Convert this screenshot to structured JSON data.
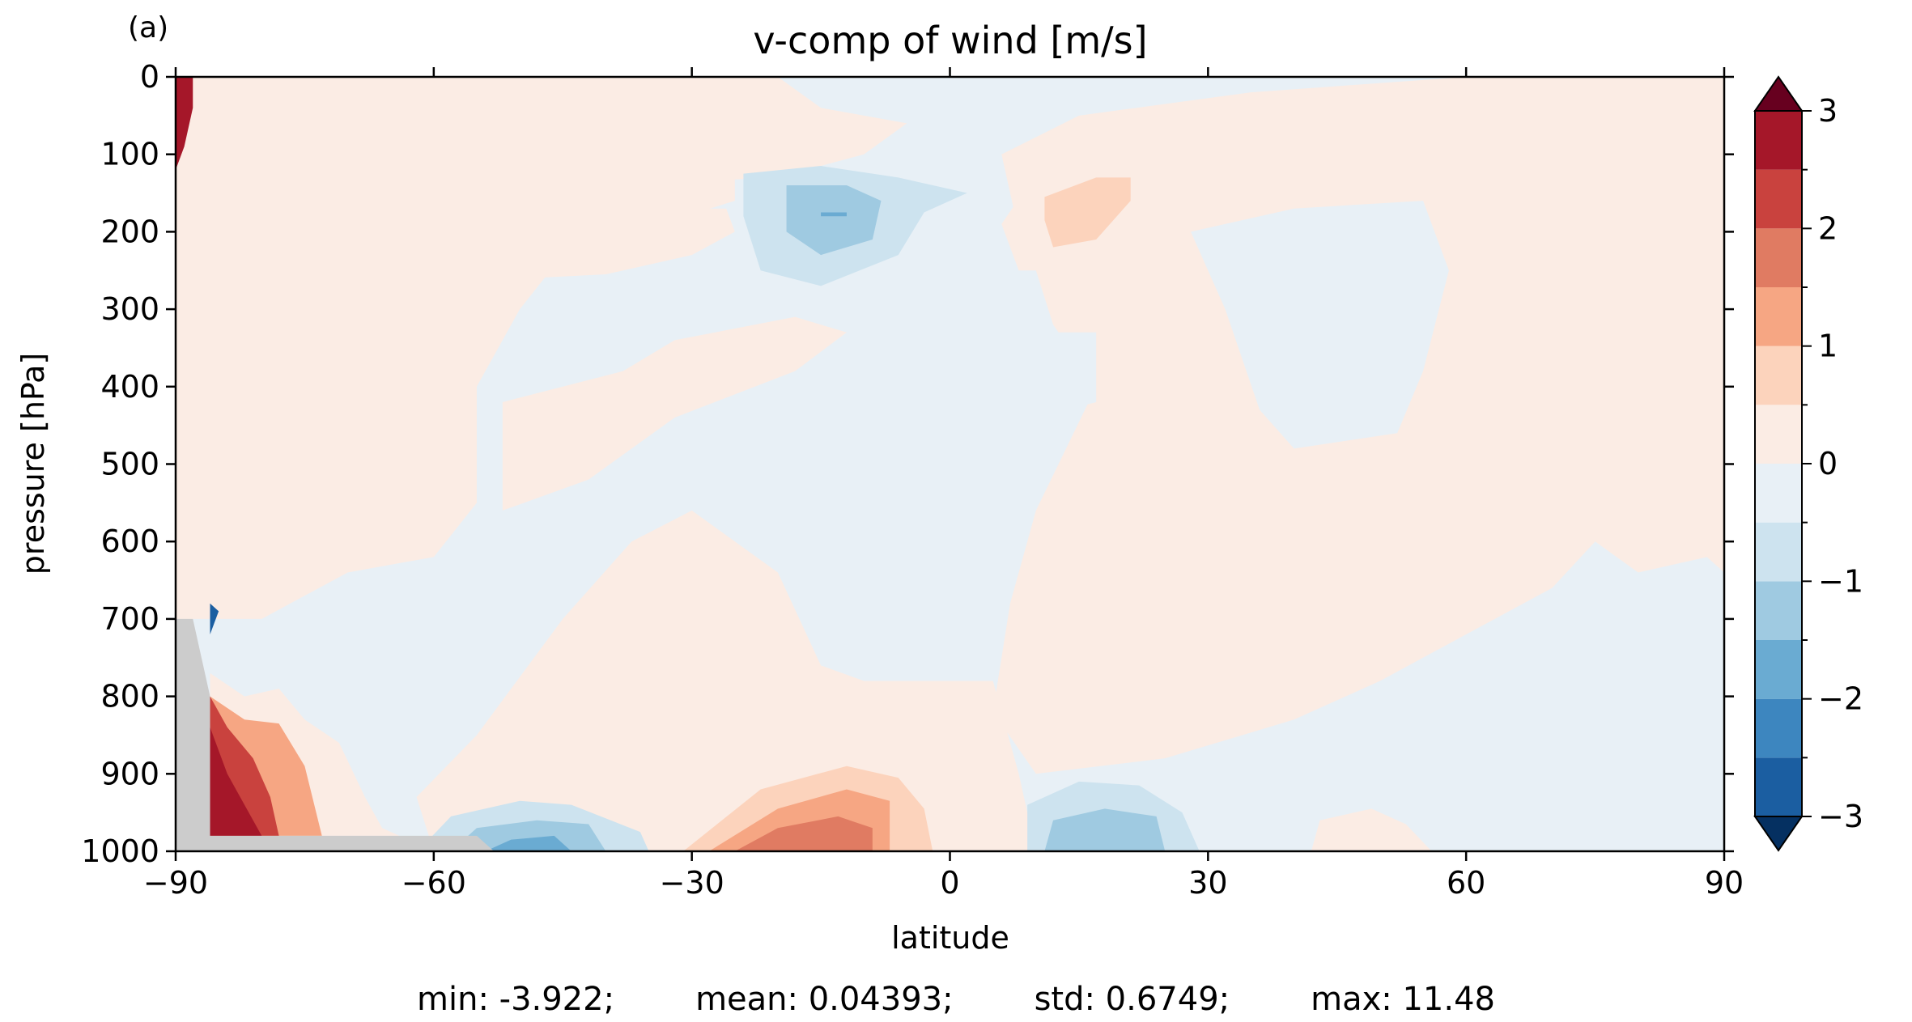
{
  "panel_label": "(a)",
  "chart_data": {
    "type": "heatmap",
    "title": "v-comp of wind [m/s]",
    "xlabel": "latitude",
    "ylabel": "pressure [hPa]",
    "xlim": [
      -90,
      90
    ],
    "ylim": [
      1000,
      0
    ],
    "x_ticks": [
      -90,
      -60,
      -30,
      0,
      30,
      60,
      90
    ],
    "x_tick_labels": [
      "−90",
      "−60",
      "−30",
      "0",
      "30",
      "60",
      "90"
    ],
    "y_ticks": [
      0,
      100,
      200,
      300,
      400,
      500,
      600,
      700,
      800,
      900,
      1000
    ],
    "y_tick_labels": [
      "0",
      "100",
      "200",
      "300",
      "400",
      "500",
      "600",
      "700",
      "800",
      "900",
      "1000"
    ],
    "colorbar": {
      "levels": [
        -3,
        -2.5,
        -2,
        -1.5,
        -1,
        -0.5,
        0,
        0.5,
        1,
        1.5,
        2,
        2.5,
        3
      ],
      "tick_values": [
        -3,
        -2,
        -1,
        0,
        1,
        2,
        3
      ],
      "tick_labels": [
        "−3",
        "−2",
        "−1",
        "0",
        "1",
        "2",
        "3"
      ],
      "extend": "both",
      "colors": [
        "#053061",
        "#1b5ea1",
        "#3d86bf",
        "#6aabd2",
        "#9fcae1",
        "#cde3ef",
        "#e8f0f6",
        "#fbece4",
        "#fcd3bc",
        "#f6a683",
        "#e07b62",
        "#c9423e",
        "#a51729",
        "#67001f"
      ],
      "missing_color": "#cccccc"
    },
    "features": [
      {
        "kind": "positive",
        "level": 1,
        "points": [
          [
            -43,
            200
          ],
          [
            -38,
            180
          ],
          [
            -32,
            170
          ],
          [
            -26,
            170
          ],
          [
            -25,
            200
          ],
          [
            -30,
            230
          ],
          [
            -40,
            255
          ],
          [
            -49,
            260
          ],
          [
            -50,
            230
          ]
        ]
      },
      {
        "kind": "negative",
        "level": 1,
        "points": [
          [
            -24,
            125
          ],
          [
            -15,
            115
          ],
          [
            -6,
            130
          ],
          [
            2,
            150
          ],
          [
            -3,
            175
          ],
          [
            -6,
            230
          ],
          [
            -15,
            270
          ],
          [
            -22,
            250
          ],
          [
            -24,
            180
          ]
        ]
      },
      {
        "kind": "negative",
        "level": 2,
        "points": [
          [
            -19,
            140
          ],
          [
            -12,
            140
          ],
          [
            -8,
            160
          ],
          [
            -9,
            210
          ],
          [
            -15,
            230
          ],
          [
            -19,
            200
          ]
        ]
      },
      {
        "kind": "negative",
        "level": 3,
        "points": [
          [
            -15,
            175
          ],
          [
            -12,
            175
          ],
          [
            -12,
            180
          ],
          [
            -15,
            180
          ]
        ]
      },
      {
        "kind": "positive",
        "level": 1,
        "points": [
          [
            10,
            125
          ],
          [
            18,
            100
          ],
          [
            25,
            105
          ],
          [
            27,
            150
          ],
          [
            23,
            190
          ],
          [
            15,
            250
          ],
          [
            8,
            250
          ],
          [
            6,
            190
          ]
        ]
      },
      {
        "kind": "positive",
        "level": 2,
        "points": [
          [
            11,
            155
          ],
          [
            17,
            130
          ],
          [
            21,
            130
          ],
          [
            21,
            160
          ],
          [
            17,
            210
          ],
          [
            12,
            220
          ],
          [
            11,
            185
          ]
        ]
      },
      {
        "kind": "positive",
        "level": 1,
        "points": [
          [
            -35,
            1000
          ],
          [
            -33,
            930
          ],
          [
            -25,
            870
          ],
          [
            -12,
            840
          ],
          [
            -2,
            860
          ],
          [
            3,
            900
          ],
          [
            5,
            1000
          ]
        ]
      },
      {
        "kind": "positive",
        "level": 2,
        "points": [
          [
            -31,
            1000
          ],
          [
            -22,
            920
          ],
          [
            -12,
            890
          ],
          [
            -6,
            905
          ],
          [
            -3,
            945
          ],
          [
            -2,
            1000
          ]
        ]
      },
      {
        "kind": "positive",
        "level": 3,
        "points": [
          [
            -28,
            1000
          ],
          [
            -20,
            945
          ],
          [
            -12,
            920
          ],
          [
            -7,
            935
          ],
          [
            -7,
            1000
          ]
        ]
      },
      {
        "kind": "positive",
        "level": 4,
        "points": [
          [
            -25,
            1000
          ],
          [
            -20,
            970
          ],
          [
            -13,
            955
          ],
          [
            -9,
            970
          ],
          [
            -9,
            1000
          ]
        ]
      },
      {
        "kind": "negative",
        "level": 1,
        "points": [
          [
            -61,
            990
          ],
          [
            -58,
            955
          ],
          [
            -50,
            935
          ],
          [
            -44,
            940
          ],
          [
            -36,
            975
          ],
          [
            -35,
            1000
          ],
          [
            -61,
            1000
          ]
        ]
      },
      {
        "kind": "negative",
        "level": 2,
        "points": [
          [
            -58,
            1000
          ],
          [
            -55,
            970
          ],
          [
            -48,
            960
          ],
          [
            -42,
            965
          ],
          [
            -40,
            1000
          ]
        ]
      },
      {
        "kind": "negative",
        "level": 3,
        "points": [
          [
            -54,
            1000
          ],
          [
            -51,
            985
          ],
          [
            -46,
            980
          ],
          [
            -44,
            1000
          ]
        ]
      },
      {
        "kind": "negative",
        "level": 1,
        "points": [
          [
            9,
            1000
          ],
          [
            9,
            940
          ],
          [
            15,
            910
          ],
          [
            22,
            915
          ],
          [
            27,
            950
          ],
          [
            29,
            1000
          ]
        ]
      },
      {
        "kind": "negative",
        "level": 2,
        "points": [
          [
            11,
            1000
          ],
          [
            12,
            960
          ],
          [
            18,
            945
          ],
          [
            24,
            955
          ],
          [
            25,
            1000
          ]
        ]
      },
      {
        "kind": "positive",
        "level": 1,
        "points": [
          [
            42,
            1000
          ],
          [
            43,
            960
          ],
          [
            49,
            945
          ],
          [
            53,
            965
          ],
          [
            56,
            1000
          ]
        ]
      },
      {
        "kind": "positive",
        "level": 1,
        "points": [
          [
            -86,
            770
          ],
          [
            -82,
            800
          ],
          [
            -78,
            790
          ],
          [
            -75,
            830
          ],
          [
            -71,
            860
          ],
          [
            -68,
            930
          ],
          [
            -66,
            970
          ],
          [
            -64,
            980
          ],
          [
            -80,
            980
          ],
          [
            -86,
            980
          ]
        ]
      },
      {
        "kind": "positive",
        "level": 3,
        "points": [
          [
            -86,
            800
          ],
          [
            -82,
            830
          ],
          [
            -78,
            835
          ],
          [
            -75,
            890
          ],
          [
            -73,
            980
          ],
          [
            -86,
            980
          ]
        ]
      },
      {
        "kind": "positive",
        "level": 5,
        "points": [
          [
            -86,
            800
          ],
          [
            -84,
            840
          ],
          [
            -81,
            880
          ],
          [
            -79,
            930
          ],
          [
            -78,
            980
          ],
          [
            -86,
            980
          ]
        ]
      },
      {
        "kind": "positive",
        "level": 6,
        "points": [
          [
            -86,
            840
          ],
          [
            -84,
            900
          ],
          [
            -82,
            940
          ],
          [
            -80,
            980
          ],
          [
            -86,
            980
          ]
        ]
      },
      {
        "kind": "positive",
        "level": 6,
        "points": [
          [
            -90,
            0
          ],
          [
            -88,
            0
          ],
          [
            -88,
            40
          ],
          [
            -89,
            90
          ],
          [
            -90,
            120
          ]
        ]
      },
      {
        "kind": "negative",
        "level": 5,
        "points": [
          [
            -86,
            680
          ],
          [
            -85,
            690
          ],
          [
            -86,
            720
          ]
        ]
      }
    ],
    "missing_region": [
      [
        -90,
        700
      ],
      [
        -88,
        700
      ],
      [
        -86,
        800
      ],
      [
        -86,
        980
      ],
      [
        -55,
        980
      ],
      [
        -53,
        1000
      ],
      [
        -90,
        1000
      ]
    ]
  },
  "stats": {
    "min": "min: -3.922;",
    "mean": "mean: 0.04393;",
    "std": "std: 0.6749;",
    "max": "max: 11.48"
  }
}
